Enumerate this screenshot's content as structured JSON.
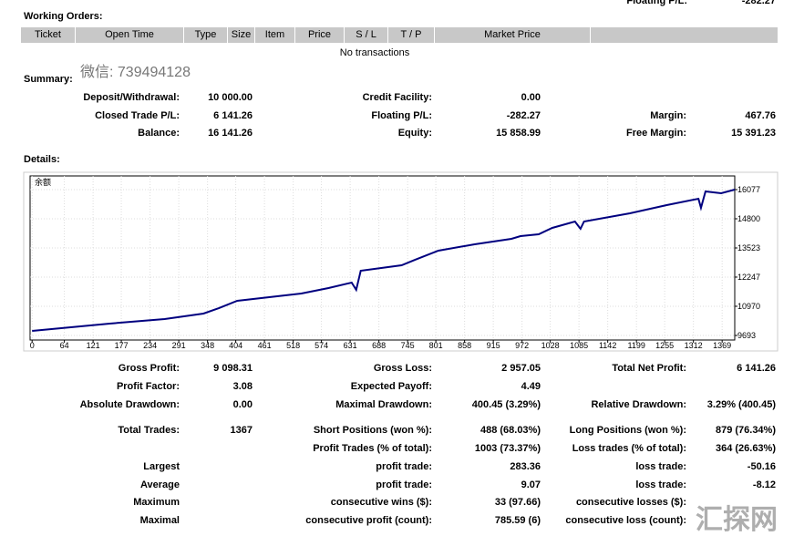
{
  "top_clip": {
    "label": "Floating P/L:",
    "value": "-282.27"
  },
  "working_orders": {
    "title": "Working Orders:",
    "columns": [
      "Ticket",
      "Open Time",
      "Type",
      "Size",
      "Item",
      "Price",
      "S / L",
      "T / P",
      "Market Price"
    ],
    "empty_text": "No transactions"
  },
  "summary": {
    "title": "Summary:",
    "watermark": "微信: 739494128",
    "rows": [
      [
        {
          "label": "Deposit/Withdrawal:",
          "value": "10 000.00"
        },
        {
          "label": "Credit Facility:",
          "value": "0.00"
        },
        null
      ],
      [
        {
          "label": "Closed Trade P/L:",
          "value": "6 141.26"
        },
        {
          "label": "Floating P/L:",
          "value": "-282.27"
        },
        {
          "label": "Margin:",
          "value": "467.76"
        }
      ],
      [
        {
          "label": "Balance:",
          "value": "16 141.26"
        },
        {
          "label": "Equity:",
          "value": "15 858.99"
        },
        {
          "label": "Free Margin:",
          "value": "15 391.23"
        }
      ]
    ]
  },
  "details_title": "Details:",
  "chart_data": {
    "type": "line",
    "title": "余额",
    "color": "#00007f",
    "grid": true,
    "x": [
      0,
      154,
      263,
      340,
      371,
      407,
      534,
      588,
      634,
      643,
      652,
      733,
      760,
      806,
      878,
      951,
      969,
      1005,
      1032,
      1077,
      1088,
      1095,
      1186,
      1259,
      1322,
      1327,
      1336,
      1367,
      1394
    ],
    "values": [
      9893,
      10212,
      10412,
      10650,
      10891,
      11210,
      11529,
      11768,
      12007,
      11688,
      12526,
      12765,
      13005,
      13404,
      13683,
      13923,
      14042,
      14122,
      14401,
      14680,
      14361,
      14680,
      15039,
      15398,
      15677,
      15278,
      15997,
      15917,
      16077
    ],
    "xlim": [
      -4,
      1394
    ],
    "ylim": [
      9493,
      16675
    ],
    "xticks": [
      0,
      64,
      121,
      177,
      234,
      291,
      348,
      404,
      461,
      518,
      574,
      631,
      688,
      745,
      801,
      858,
      915,
      972,
      1028,
      1085,
      1142,
      1199,
      1255,
      1312,
      1369
    ],
    "yticks": [
      9693,
      10970,
      12247,
      13523,
      14800,
      16077
    ]
  },
  "stats": {
    "rows": [
      [
        {
          "label": "Gross Profit:",
          "value": "9 098.31"
        },
        {
          "label": "Gross Loss:",
          "value": "2 957.05"
        },
        {
          "label": "Total Net Profit:",
          "value": "6 141.26"
        }
      ],
      [
        {
          "label": "Profit Factor:",
          "value": "3.08"
        },
        {
          "label": "Expected Payoff:",
          "value": "4.49"
        },
        null
      ],
      [
        {
          "label": "Absolute Drawdown:",
          "value": "0.00"
        },
        {
          "label": "Maximal Drawdown:",
          "value": "400.45 (3.29%)"
        },
        {
          "label": "Relative Drawdown:",
          "value": "3.29% (400.45)"
        }
      ],
      [
        {
          "label": "Total Trades:",
          "value": "1367"
        },
        {
          "label": "Short Positions (won %):",
          "value": "488 (68.03%)"
        },
        {
          "label": "Long Positions (won %):",
          "value": "879 (76.34%)"
        }
      ],
      [
        null,
        {
          "label": "Profit Trades (% of total):",
          "value": "1003 (73.37%)"
        },
        {
          "label": "Loss trades (% of total):",
          "value": "364 (26.63%)"
        }
      ],
      [
        {
          "label": "Largest"
        },
        {
          "label": "profit trade:",
          "value": "283.36"
        },
        {
          "label": "loss trade:",
          "value": "-50.16"
        }
      ],
      [
        {
          "label": "Average"
        },
        {
          "label": "profit trade:",
          "value": "9.07"
        },
        {
          "label": "loss trade:",
          "value": "-8.12"
        }
      ],
      [
        {
          "label": "Maximum"
        },
        {
          "label": "consecutive wins ($):",
          "value": "33 (97.66)"
        },
        {
          "label": "consecutive losses ($):"
        }
      ],
      [
        {
          "label": "Maximal"
        },
        {
          "label": "consecutive profit (count):",
          "value": "785.59 (6)"
        },
        {
          "label": "consecutive loss (count):"
        }
      ]
    ]
  },
  "watermark": "汇探网"
}
